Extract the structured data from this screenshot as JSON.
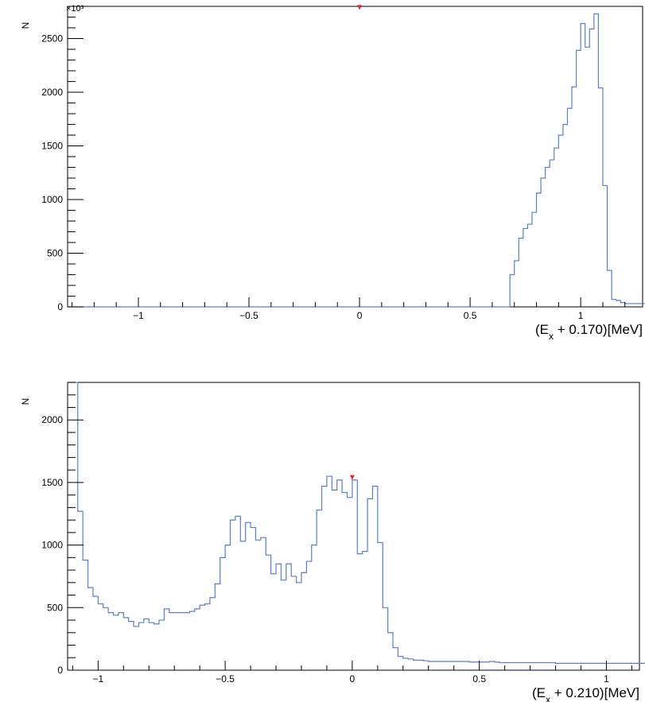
{
  "chart_data": [
    {
      "type": "histogram",
      "ylabel": "N",
      "y_multiplier": "×10³",
      "xlim": [
        -1.32,
        1.28
      ],
      "ylim": [
        0,
        2800
      ],
      "xticks": [
        -1,
        -0.5,
        0,
        0.5,
        1
      ],
      "xtick_labels": [
        "−1",
        "−0.5",
        "0",
        "0.5",
        "1"
      ],
      "yticks": [
        0,
        500,
        1000,
        1500,
        2000,
        2500
      ],
      "ytick_labels": [
        "0",
        "500",
        "1000",
        "1500",
        "2000",
        "2500"
      ],
      "xlabel": {
        "pre": "(E",
        "sub": "x",
        "post": " + 0.170)[MeV]"
      },
      "line_color": "#5b7fc4",
      "marker": {
        "x": 0,
        "y": 2790,
        "color": "#e8222a"
      },
      "bin_start": -1.32,
      "bin_width": 0.02,
      "values": [
        0,
        0,
        0,
        0,
        0,
        0,
        0,
        0,
        0,
        0,
        0,
        0,
        0,
        0,
        0,
        0,
        0,
        0,
        0,
        0,
        0,
        0,
        0,
        0,
        0,
        0,
        0,
        0,
        0,
        0,
        0,
        0,
        0,
        0,
        0,
        0,
        0,
        0,
        0,
        0,
        0,
        0,
        0,
        0,
        0,
        0,
        0,
        0,
        0,
        0,
        0,
        0,
        0,
        0,
        0,
        0,
        0,
        0,
        0,
        0,
        0,
        0,
        0,
        0,
        0,
        0,
        0,
        0,
        0,
        0,
        0,
        0,
        0,
        0,
        0,
        0,
        0,
        0,
        0,
        0,
        0,
        0,
        0,
        0,
        0,
        0,
        0,
        0,
        0,
        0,
        0,
        0,
        0,
        0,
        0,
        0,
        0,
        0,
        0,
        0,
        300,
        430,
        640,
        730,
        770,
        880,
        1060,
        1200,
        1300,
        1370,
        1480,
        1600,
        1700,
        1850,
        2050,
        2390,
        2640,
        2420,
        2590,
        2730,
        2040,
        1130,
        340,
        70,
        60,
        40,
        30,
        30,
        30,
        30,
        30,
        30,
        30,
        30,
        30,
        30,
        30,
        35,
        35,
        35,
        35,
        40,
        40,
        40,
        40,
        40,
        45,
        45,
        45,
        45,
        45,
        45,
        50,
        50,
        50,
        55,
        60,
        60,
        60,
        65,
        60,
        50,
        55,
        50,
        50,
        55,
        55,
        60,
        60,
        60,
        60,
        60,
        60,
        60,
        60,
        60,
        60,
        60,
        60,
        65,
        65,
        65,
        65,
        65,
        65,
        70,
        70,
        70,
        70,
        75,
        75,
        80
      ]
    },
    {
      "type": "histogram",
      "ylabel": "N",
      "xlim": [
        -1.12,
        1.13
      ],
      "ylim": [
        0,
        2300
      ],
      "xticks": [
        -1,
        -0.5,
        0,
        0.5,
        1
      ],
      "xtick_labels": [
        "−1",
        "−0.5",
        "0",
        "0.5",
        "1"
      ],
      "yticks": [
        0,
        500,
        1000,
        1500,
        2000
      ],
      "ytick_labels": [
        "0",
        "500",
        "1000",
        "1500",
        "2000"
      ],
      "xlabel": {
        "pre": "(E",
        "sub": "x",
        "post": " + 0.210)[MeV]"
      },
      "line_color": "#5b7fc4",
      "marker": {
        "x": 0,
        "y": 1540,
        "color": "#e8222a"
      },
      "bin_start": -1.12,
      "bin_width": 0.02,
      "values": [
        2300,
        2300,
        1270,
        880,
        660,
        590,
        530,
        500,
        460,
        440,
        460,
        420,
        390,
        350,
        380,
        410,
        380,
        370,
        400,
        490,
        460,
        460,
        460,
        460,
        470,
        490,
        520,
        530,
        580,
        690,
        900,
        1000,
        1200,
        1230,
        1030,
        1180,
        1140,
        1040,
        1060,
        920,
        770,
        850,
        720,
        850,
        750,
        700,
        780,
        870,
        1000,
        1280,
        1470,
        1550,
        1440,
        1520,
        1420,
        1380,
        1520,
        930,
        950,
        1370,
        1470,
        1020,
        500,
        300,
        180,
        110,
        95,
        90,
        80,
        80,
        75,
        70,
        70,
        70,
        70,
        70,
        70,
        70,
        70,
        65,
        65,
        65,
        65,
        70,
        65,
        60,
        60,
        60,
        60,
        60,
        60,
        60,
        60,
        60,
        60,
        60,
        55,
        55,
        55,
        55,
        55,
        55,
        55,
        55,
        55,
        55,
        55,
        55,
        55,
        55,
        55,
        55,
        55,
        55,
        50,
        50,
        55,
        50,
        50
      ]
    }
  ]
}
